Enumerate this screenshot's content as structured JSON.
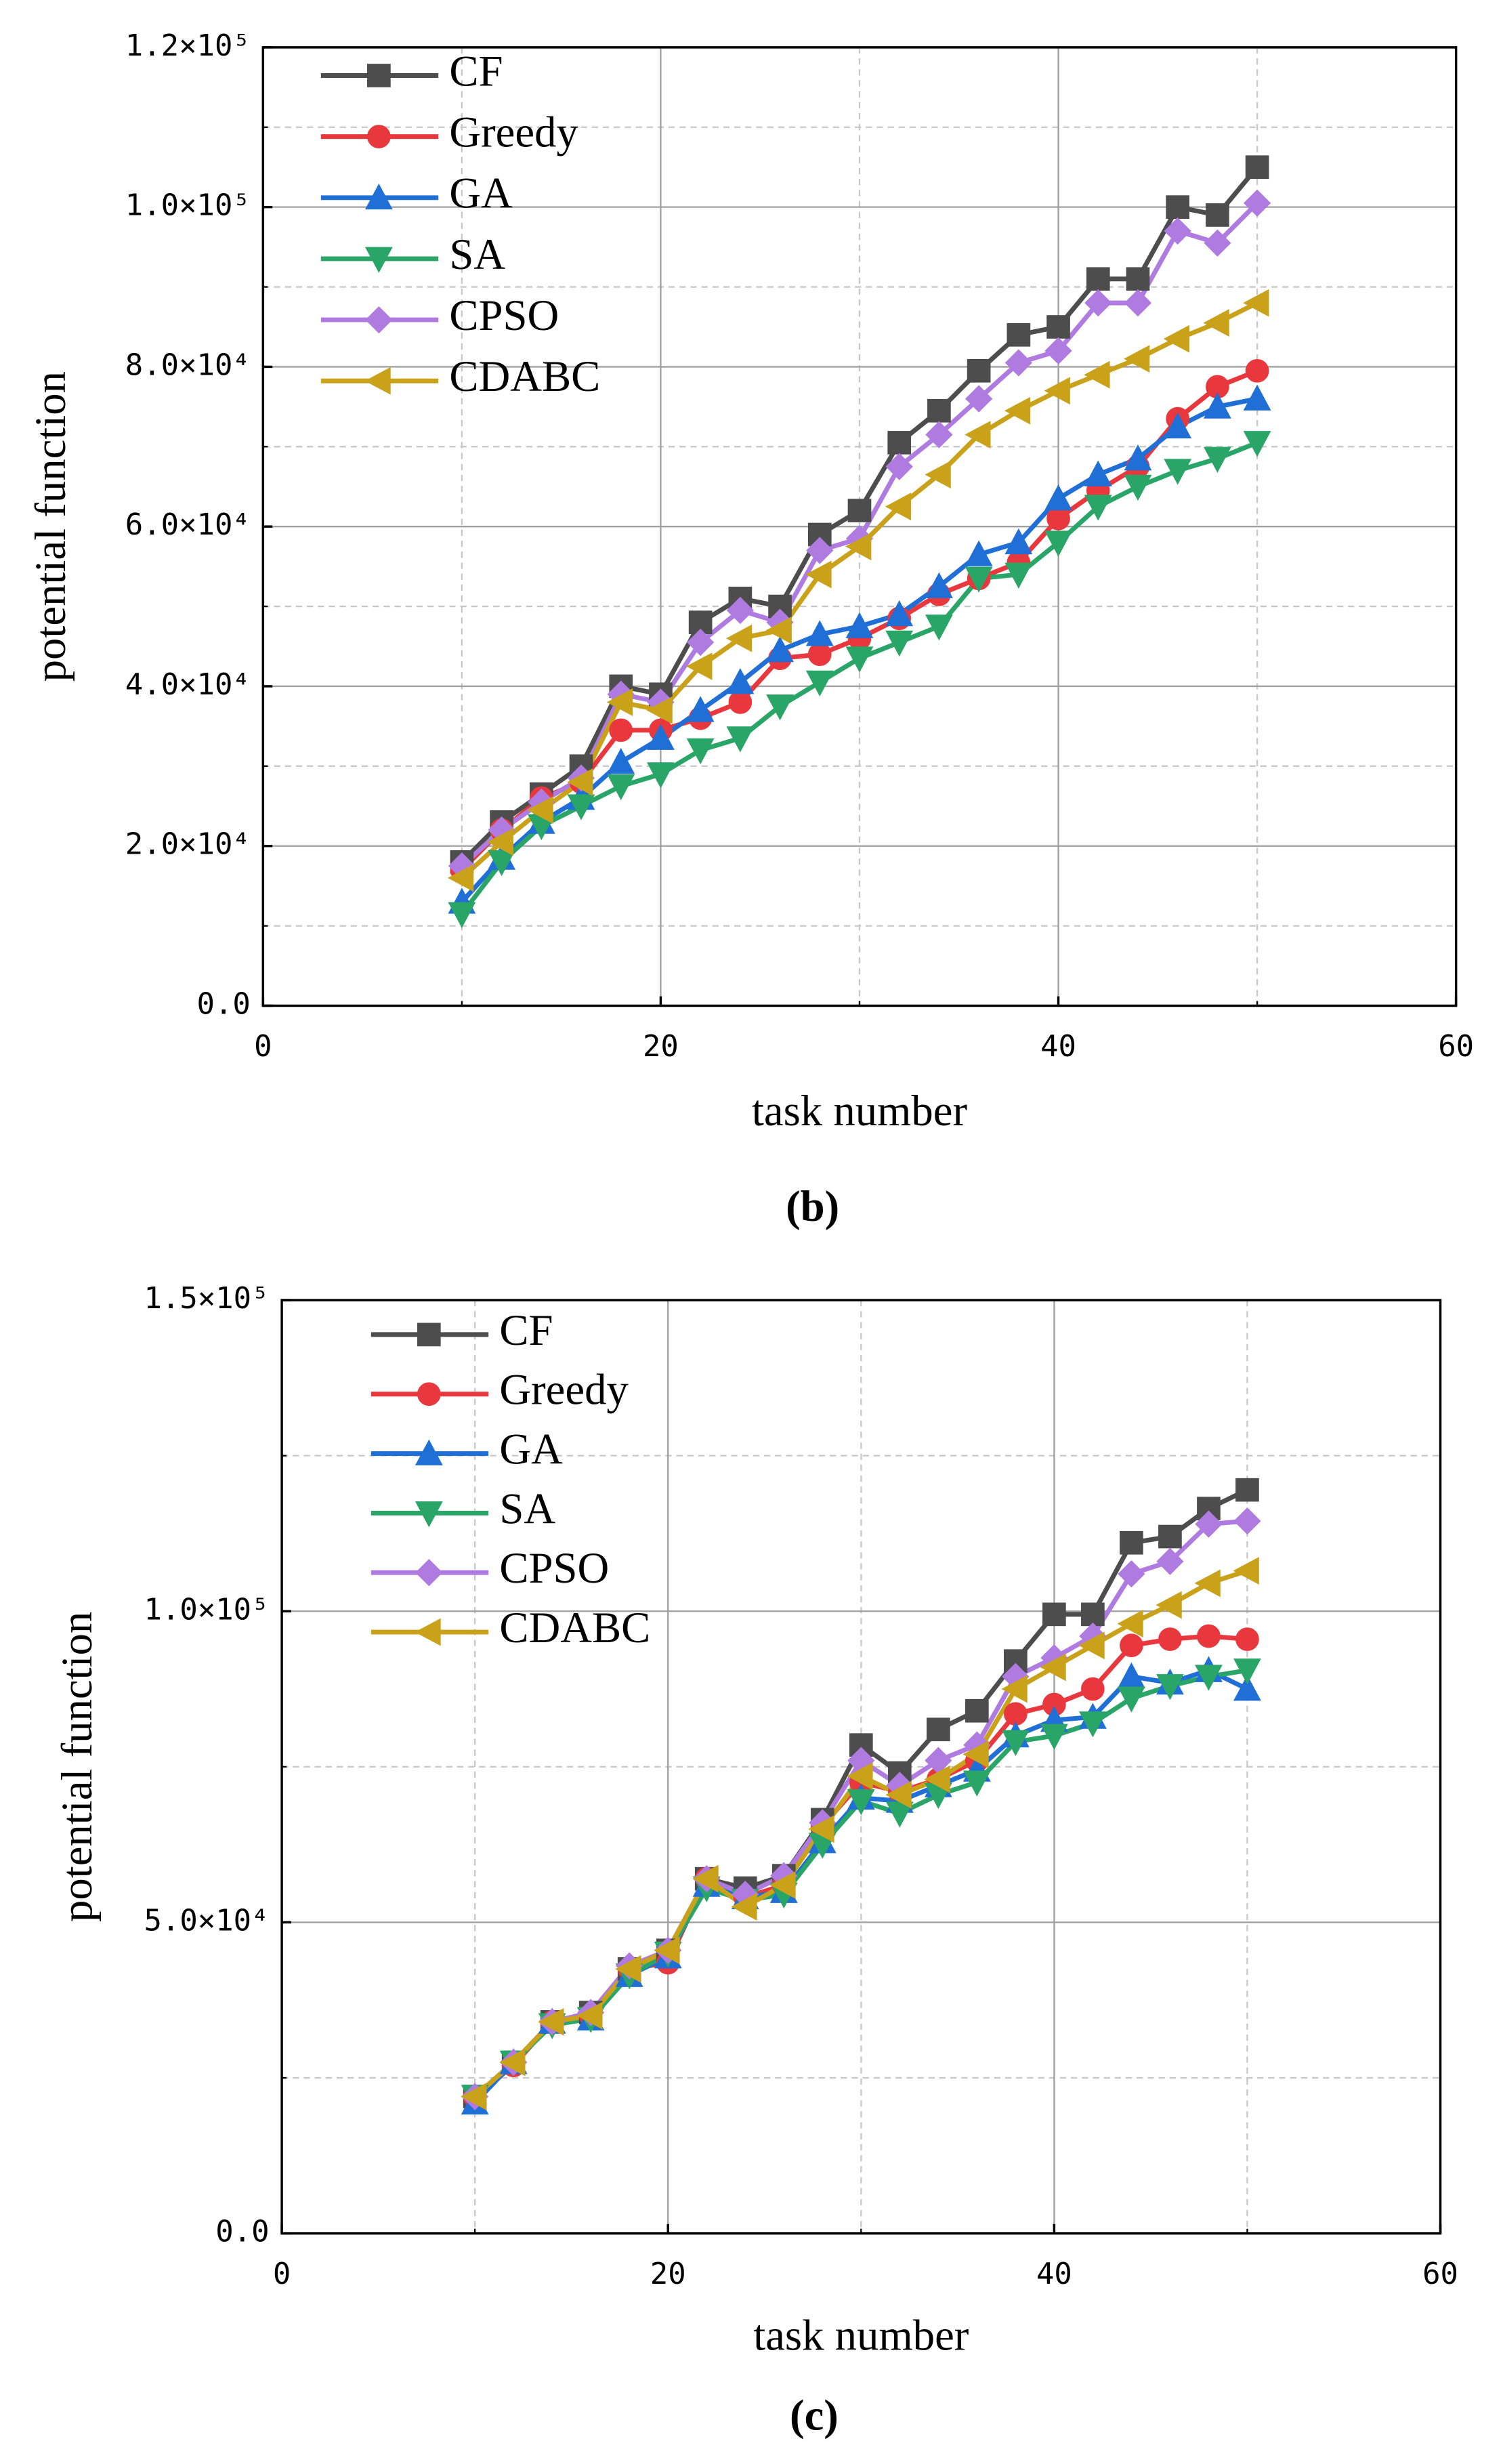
{
  "chart_data": [
    {
      "type": "line",
      "caption": "(b)",
      "xlabel": "task number",
      "ylabel": "potential function",
      "x": [
        10,
        12,
        14,
        16,
        18,
        20,
        22,
        24,
        26,
        28,
        30,
        32,
        34,
        36,
        38,
        40,
        42,
        44,
        46,
        48,
        50
      ],
      "xlim": [
        0,
        60
      ],
      "xticks": [
        0,
        20,
        40,
        60
      ],
      "x_minor_ticks": [
        10,
        30,
        50
      ],
      "ylim": [
        0,
        120000
      ],
      "yticks": [
        {
          "value": 0,
          "label": "0.0"
        },
        {
          "value": 20000,
          "label": "2.0×10⁴"
        },
        {
          "value": 40000,
          "label": "4.0×10⁴"
        },
        {
          "value": 60000,
          "label": "6.0×10⁴"
        },
        {
          "value": 80000,
          "label": "8.0×10⁴"
        },
        {
          "value": 100000,
          "label": "1.0×10⁵"
        },
        {
          "value": 120000,
          "label": "1.2×10⁵"
        }
      ],
      "y_minor_ticks": [
        10000,
        30000,
        50000,
        70000,
        90000,
        110000
      ],
      "grid": true,
      "legend": "upper left",
      "series": [
        {
          "name": "CF",
          "color": "#4d4d4d",
          "marker": "square",
          "values": [
            18000,
            23000,
            26500,
            30000,
            40000,
            39000,
            48000,
            51000,
            50000,
            59000,
            62000,
            70500,
            74500,
            79500,
            84000,
            85000,
            91000,
            91000,
            100000,
            99000,
            105000
          ]
        },
        {
          "name": "Greedy",
          "color": "#e8383d",
          "marker": "circle",
          "values": [
            17000,
            22000,
            26000,
            28000,
            34500,
            34500,
            36000,
            38000,
            43500,
            44000,
            46000,
            48500,
            51500,
            53500,
            55500,
            61000,
            64500,
            67500,
            73500,
            77500,
            79500
          ]
        },
        {
          "name": "GA",
          "color": "#1f6fd6",
          "marker": "triangle-up",
          "values": [
            13000,
            18500,
            23000,
            26000,
            30500,
            33500,
            37000,
            40500,
            44500,
            46500,
            47500,
            49000,
            52500,
            56500,
            58000,
            63500,
            66500,
            68500,
            72500,
            75000,
            76000
          ]
        },
        {
          "name": "SA",
          "color": "#2aa568",
          "marker": "triangle-down",
          "values": [
            11500,
            18000,
            22500,
            25000,
            27500,
            29000,
            32000,
            33500,
            37500,
            40500,
            43500,
            45500,
            47500,
            53500,
            54000,
            58000,
            62500,
            65000,
            67000,
            68500,
            70500
          ]
        },
        {
          "name": "CPSO",
          "color": "#b07be0",
          "marker": "diamond",
          "values": [
            17500,
            22000,
            25500,
            28500,
            39000,
            38000,
            45500,
            49500,
            48000,
            57000,
            58500,
            67500,
            71500,
            76000,
            80500,
            82000,
            88000,
            88000,
            97000,
            95500,
            100500
          ]
        },
        {
          "name": "CDABC",
          "color": "#c9a21a",
          "marker": "triangle-left",
          "values": [
            16000,
            20500,
            24500,
            28000,
            38000,
            37000,
            42500,
            46000,
            47000,
            54000,
            57500,
            62500,
            66500,
            71500,
            74500,
            77000,
            79000,
            81000,
            83500,
            85500,
            88000
          ]
        }
      ]
    },
    {
      "type": "line",
      "caption": "(c)",
      "xlabel": "task number",
      "ylabel": "potential function",
      "x": [
        10,
        12,
        14,
        16,
        18,
        20,
        22,
        24,
        26,
        28,
        30,
        32,
        34,
        36,
        38,
        40,
        42,
        44,
        46,
        48,
        50
      ],
      "xlim": [
        0,
        60
      ],
      "xticks": [
        0,
        20,
        40,
        60
      ],
      "x_minor_ticks": [
        10,
        30,
        50
      ],
      "ylim": [
        0,
        150000
      ],
      "yticks": [
        {
          "value": 0,
          "label": "0.0"
        },
        {
          "value": 50000,
          "label": "5.0×10⁴"
        },
        {
          "value": 100000,
          "label": "1.0×10⁵"
        },
        {
          "value": 150000,
          "label": "1.5×10⁵"
        }
      ],
      "y_minor_ticks": [
        25000,
        75000,
        125000
      ],
      "grid": true,
      "legend": "upper left",
      "series": [
        {
          "name": "CF",
          "color": "#4d4d4d",
          "marker": "square",
          "values": [
            22000,
            27500,
            34000,
            35500,
            42500,
            45500,
            57000,
            55500,
            57500,
            66500,
            78500,
            74000,
            81000,
            84000,
            92000,
            99500,
            99500,
            111000,
            112000,
            116500,
            119500
          ]
        },
        {
          "name": "Greedy",
          "color": "#e8383d",
          "marker": "circle",
          "values": [
            22000,
            27000,
            34000,
            35000,
            42500,
            43500,
            57000,
            54000,
            56000,
            65500,
            72500,
            71000,
            73000,
            76000,
            83500,
            85000,
            87500,
            94500,
            95500,
            96000,
            95500
          ]
        },
        {
          "name": "GA",
          "color": "#1f6fd6",
          "marker": "triangle-up",
          "values": [
            21000,
            27500,
            34000,
            34500,
            41500,
            44500,
            56000,
            54000,
            55000,
            63000,
            70000,
            69500,
            72000,
            74500,
            80000,
            82500,
            83000,
            89500,
            88500,
            90500,
            87500
          ]
        },
        {
          "name": "SA",
          "color": "#2aa568",
          "marker": "triangle-down",
          "values": [
            22000,
            27500,
            33500,
            34500,
            41500,
            45000,
            55500,
            53500,
            54500,
            62500,
            69500,
            67500,
            70500,
            72500,
            79000,
            80000,
            82000,
            86000,
            88000,
            89500,
            90500
          ]
        },
        {
          "name": "CPSO",
          "color": "#b07be0",
          "marker": "diamond",
          "values": [
            22000,
            27500,
            34000,
            35500,
            43000,
            45500,
            57000,
            54500,
            57500,
            66000,
            76000,
            72000,
            76000,
            78500,
            89500,
            92500,
            96000,
            106000,
            108000,
            114000,
            114500
          ]
        },
        {
          "name": "CDABC",
          "color": "#c9a21a",
          "marker": "triangle-left",
          "values": [
            22000,
            27500,
            34000,
            35000,
            42500,
            45500,
            57000,
            52500,
            56000,
            65000,
            73500,
            70500,
            73000,
            77000,
            87500,
            91000,
            94500,
            98000,
            101000,
            104500,
            106500
          ]
        }
      ]
    }
  ]
}
